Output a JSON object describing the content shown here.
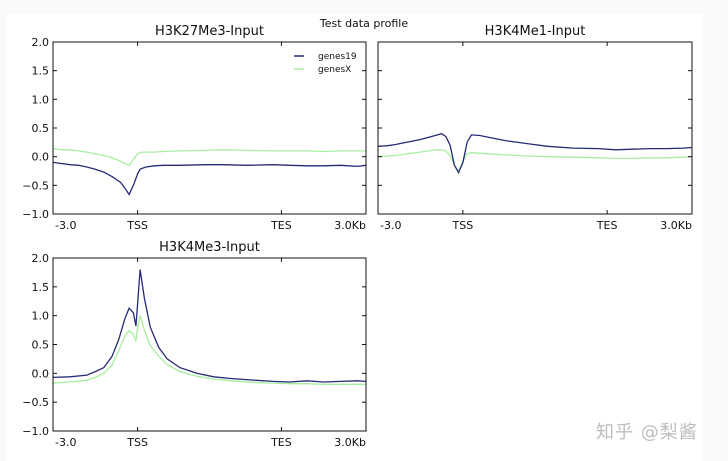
{
  "figure": {
    "suptitle": "Test data profile",
    "watermark": "知乎 @梨酱"
  },
  "colors": {
    "genes19": "#262a76",
    "genesX": "#a8eea0",
    "axis": "#111111"
  },
  "chart_data": [
    {
      "type": "line",
      "title": "H3K27Me3-Input",
      "xlabel": "",
      "ylabel": "",
      "xticks": [
        "-3.0",
        "TSS",
        "TES",
        "3.0Kb"
      ],
      "ylim": [
        -1.0,
        2.0
      ],
      "yticks": [
        "2.0",
        "1.5",
        "1.0",
        "0.5",
        "0.0",
        "−0.5",
        "−1.0"
      ],
      "grid": false,
      "legend": {
        "position": "upper right",
        "entries": [
          "genes19",
          "genesX"
        ]
      },
      "x": [
        0,
        0.1,
        0.2,
        0.3,
        0.4,
        0.5,
        0.6,
        0.7,
        0.8,
        0.85,
        0.9,
        0.95,
        1.0,
        1.03,
        1.06,
        1.1,
        1.2,
        1.3,
        1.5,
        1.8,
        2.0,
        2.3,
        2.6,
        2.8,
        3.0,
        3.2,
        3.4,
        3.6,
        3.7
      ],
      "series": [
        {
          "name": "genes19",
          "values": [
            -0.1,
            -0.12,
            -0.14,
            -0.15,
            -0.18,
            -0.22,
            -0.27,
            -0.35,
            -0.45,
            -0.55,
            -0.66,
            -0.5,
            -0.3,
            -0.22,
            -0.2,
            -0.18,
            -0.16,
            -0.15,
            -0.15,
            -0.14,
            -0.14,
            -0.15,
            -0.14,
            -0.15,
            -0.16,
            -0.16,
            -0.15,
            -0.17,
            -0.15
          ]
        },
        {
          "name": "genesX",
          "values": [
            0.14,
            0.12,
            0.12,
            0.1,
            0.08,
            0.05,
            0.02,
            -0.02,
            -0.08,
            -0.12,
            -0.15,
            -0.05,
            0.05,
            0.07,
            0.08,
            0.08,
            0.08,
            0.09,
            0.1,
            0.11,
            0.12,
            0.11,
            0.1,
            0.1,
            0.1,
            0.09,
            0.1,
            0.1,
            0.1
          ]
        }
      ]
    },
    {
      "type": "line",
      "title": "H3K4Me1-Input",
      "xlabel": "",
      "ylabel": "",
      "xticks": [
        "-3.0",
        "TSS",
        "TES",
        "3.0Kb"
      ],
      "ylim": [
        -1.0,
        2.0
      ],
      "grid": false,
      "x": [
        0,
        0.1,
        0.2,
        0.3,
        0.4,
        0.5,
        0.6,
        0.7,
        0.75,
        0.8,
        0.85,
        0.9,
        0.95,
        1.0,
        1.05,
        1.1,
        1.2,
        1.3,
        1.5,
        1.8,
        2.0,
        2.3,
        2.6,
        2.8,
        3.0,
        3.2,
        3.4,
        3.6,
        3.7
      ],
      "series": [
        {
          "name": "genes19",
          "values": [
            0.18,
            0.19,
            0.21,
            0.24,
            0.27,
            0.3,
            0.34,
            0.38,
            0.4,
            0.35,
            0.2,
            -0.15,
            -0.28,
            -0.1,
            0.25,
            0.38,
            0.37,
            0.34,
            0.28,
            0.22,
            0.18,
            0.15,
            0.14,
            0.12,
            0.13,
            0.14,
            0.14,
            0.15,
            0.16
          ]
        },
        {
          "name": "genesX",
          "values": [
            0.0,
            0.01,
            0.02,
            0.04,
            0.06,
            0.08,
            0.1,
            0.12,
            0.12,
            0.1,
            0.02,
            -0.15,
            -0.25,
            -0.08,
            0.05,
            0.07,
            0.06,
            0.05,
            0.03,
            0.01,
            0.0,
            -0.01,
            -0.02,
            -0.03,
            -0.03,
            -0.02,
            -0.02,
            -0.01,
            0.0
          ]
        }
      ]
    },
    {
      "type": "line",
      "title": "H3K4Me3-Input",
      "xlabel": "",
      "ylabel": "",
      "xticks": [
        "-3.0",
        "TSS",
        "TES",
        "3.0Kb"
      ],
      "ylim": [
        -1.0,
        2.0
      ],
      "yticks": [
        "2.0",
        "1.5",
        "1.0",
        "0.5",
        "0.0",
        "−0.5",
        "−1.0"
      ],
      "grid": false,
      "x": [
        0,
        0.2,
        0.4,
        0.5,
        0.6,
        0.7,
        0.78,
        0.85,
        0.9,
        0.95,
        0.98,
        1.0,
        1.03,
        1.08,
        1.15,
        1.25,
        1.35,
        1.5,
        1.7,
        1.9,
        2.1,
        2.4,
        2.6,
        2.8,
        3.0,
        3.2,
        3.4,
        3.6,
        3.7
      ],
      "series": [
        {
          "name": "genes19",
          "values": [
            -0.07,
            -0.06,
            -0.03,
            0.03,
            0.1,
            0.3,
            0.6,
            0.95,
            1.13,
            1.05,
            0.82,
            1.2,
            1.8,
            1.3,
            0.8,
            0.45,
            0.25,
            0.1,
            0.0,
            -0.06,
            -0.09,
            -0.12,
            -0.14,
            -0.15,
            -0.13,
            -0.15,
            -0.14,
            -0.13,
            -0.14
          ]
        },
        {
          "name": "genesX",
          "values": [
            -0.17,
            -0.15,
            -0.12,
            -0.07,
            0.0,
            0.15,
            0.4,
            0.65,
            0.74,
            0.68,
            0.55,
            0.8,
            1.0,
            0.75,
            0.48,
            0.3,
            0.15,
            0.03,
            -0.05,
            -0.1,
            -0.13,
            -0.16,
            -0.17,
            -0.18,
            -0.18,
            -0.19,
            -0.19,
            -0.19,
            -0.19
          ]
        }
      ]
    }
  ]
}
